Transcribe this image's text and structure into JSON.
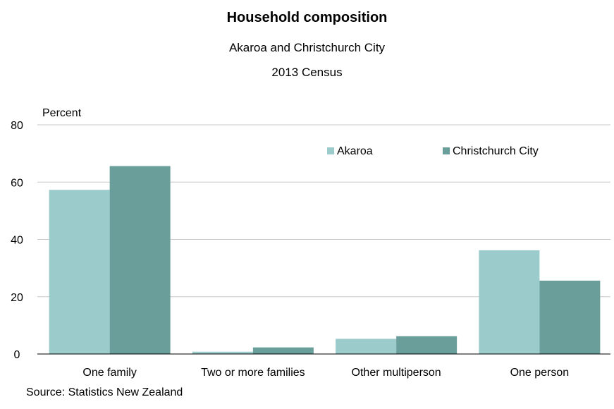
{
  "chart_data": {
    "type": "bar",
    "title": "Household composition",
    "subtitle": "Akaroa and Christchurch City",
    "subtitle2": "2013 Census",
    "ylabel": "Percent",
    "xlabel": "",
    "categories": [
      "One family",
      "Two or more families",
      "Other multiperson",
      "One person"
    ],
    "series": [
      {
        "name": "Akaroa",
        "values": [
          57.3,
          0.8,
          5.3,
          36.2
        ],
        "color": "#9ccbcc"
      },
      {
        "name": "Christchurch City",
        "values": [
          65.6,
          2.3,
          6.2,
          25.6
        ],
        "color": "#6a9e9b"
      }
    ],
    "ylim": [
      0,
      80
    ],
    "yticks": [
      0,
      20,
      40,
      60,
      80
    ],
    "grid": true,
    "legend": "top-right",
    "source": "Source: Statistics New Zealand"
  }
}
